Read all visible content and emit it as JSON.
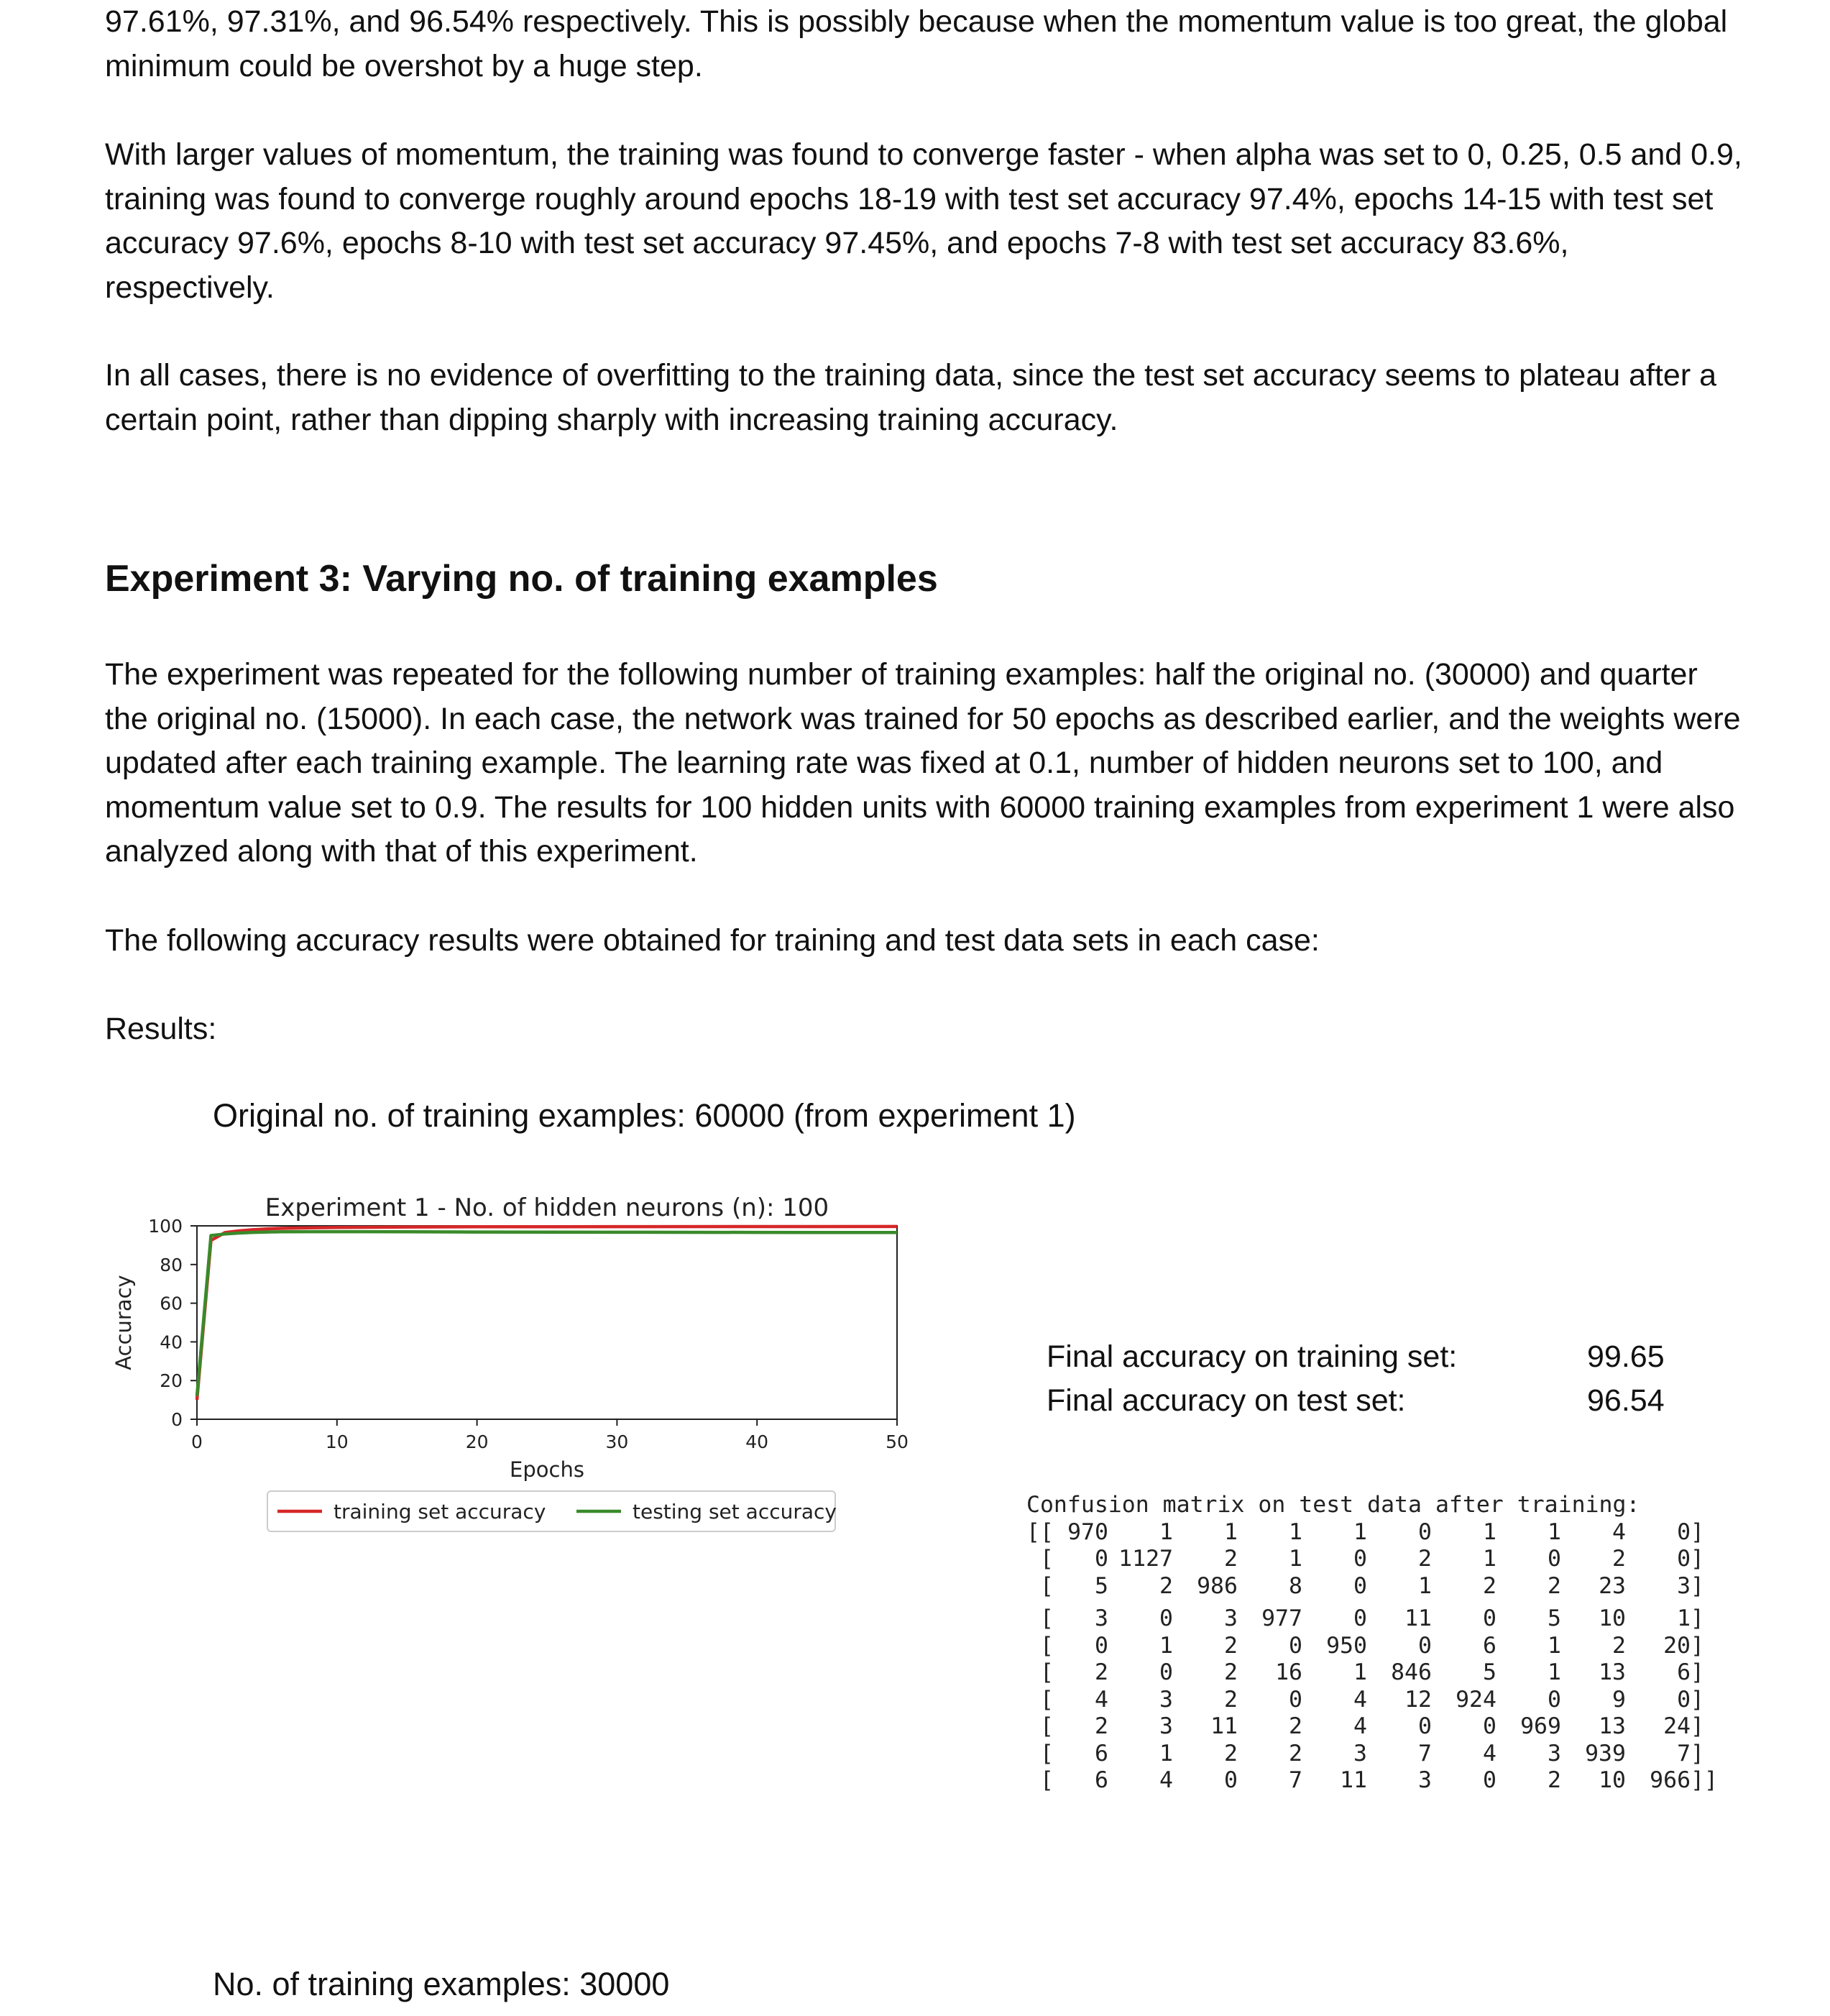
{
  "paragraphs": [
    "97.61%, 97.31%, and 96.54% respectively. This is possibly because when the momentum value is too great, the global minimum could be overshot by a huge step.",
    "With larger values of momentum, the training was found to converge faster - when alpha was set to 0, 0.25, 0.5 and 0.9, training was found to converge roughly around epochs 18-19 with test set accuracy 97.4%, epochs 14-15 with test set accuracy 97.6%, epochs  8-10 with test set accuracy 97.45%, and epochs 7-8 with test set accuracy 83.6%, respectively.",
    "In all cases, there is no evidence of overfitting to the training data, since the test set accuracy seems to plateau after a certain point, rather than dipping sharply with increasing training accuracy."
  ],
  "experiment3": {
    "heading": "Experiment 3: Varying no. of training examples",
    "intro": "The experiment was repeated for the following number of training examples: half the original no. (30000) and quarter the original no. (15000). In each case, the network was trained for 50 epochs as described earlier, and the weights were updated after each training example. The learning rate was fixed at 0.1, number of hidden neurons set to 100, and momentum value set to 0.9. The results for 100 hidden units with 60000 training examples from experiment 1 were also analyzed along with that of this experiment.",
    "following": "The following accuracy results were obtained for training and test data sets in each case:",
    "results_label": "Results:",
    "subsection1": "Original no. of training examples: 60000 (from experiment 1)",
    "subsection2": "No. of training examples: 30000"
  },
  "accuracy": {
    "train_label": "Final accuracy on training set:",
    "train_value": "99.65",
    "test_label": "Final accuracy on test set:",
    "test_value": "96.54"
  },
  "confusion": {
    "title": "Confusion matrix on test data after training:",
    "rows": [
      [
        970,
        1,
        1,
        1,
        1,
        0,
        1,
        1,
        4,
        0
      ],
      [
        0,
        1127,
        2,
        1,
        0,
        2,
        1,
        0,
        2,
        0
      ],
      [
        5,
        2,
        986,
        8,
        0,
        1,
        2,
        2,
        23,
        3
      ],
      [
        3,
        0,
        3,
        977,
        0,
        11,
        0,
        5,
        10,
        1
      ],
      [
        0,
        1,
        2,
        0,
        950,
        0,
        6,
        1,
        2,
        20
      ],
      [
        2,
        0,
        2,
        16,
        1,
        846,
        5,
        1,
        13,
        6
      ],
      [
        4,
        3,
        2,
        0,
        4,
        12,
        924,
        0,
        9,
        0
      ],
      [
        2,
        3,
        11,
        2,
        4,
        0,
        0,
        969,
        13,
        24
      ],
      [
        6,
        1,
        2,
        2,
        3,
        7,
        4,
        3,
        939,
        7
      ],
      [
        6,
        4,
        0,
        7,
        11,
        3,
        0,
        2,
        10,
        966
      ]
    ]
  },
  "chart_data": {
    "type": "line",
    "title": "Experiment 1 - No. of hidden neurons (n): 100",
    "xlabel": "Epochs",
    "ylabel": "Accuracy",
    "xlim": [
      0,
      50
    ],
    "ylim": [
      0,
      100
    ],
    "xticks": [
      0,
      10,
      20,
      30,
      40,
      50
    ],
    "yticks": [
      0,
      20,
      40,
      60,
      80,
      100
    ],
    "grid": false,
    "legend_position": "bottom-center",
    "series": [
      {
        "name": "training set accuracy",
        "color": "#d62728",
        "x": [
          0,
          1,
          2,
          3,
          4,
          5,
          6,
          8,
          10,
          15,
          20,
          30,
          40,
          50
        ],
        "y": [
          10,
          92.5,
          96.5,
          97.4,
          98.0,
          98.4,
          98.7,
          99.0,
          99.2,
          99.4,
          99.5,
          99.6,
          99.63,
          99.65
        ]
      },
      {
        "name": "testing set accuracy",
        "color": "#3a8a2a",
        "x": [
          0,
          1,
          2,
          3,
          4,
          5,
          6,
          8,
          10,
          15,
          20,
          30,
          40,
          50
        ],
        "y": [
          12,
          95.0,
          95.8,
          96.3,
          96.6,
          96.8,
          96.9,
          97.0,
          97.0,
          96.9,
          96.8,
          96.7,
          96.6,
          96.54
        ]
      }
    ]
  }
}
